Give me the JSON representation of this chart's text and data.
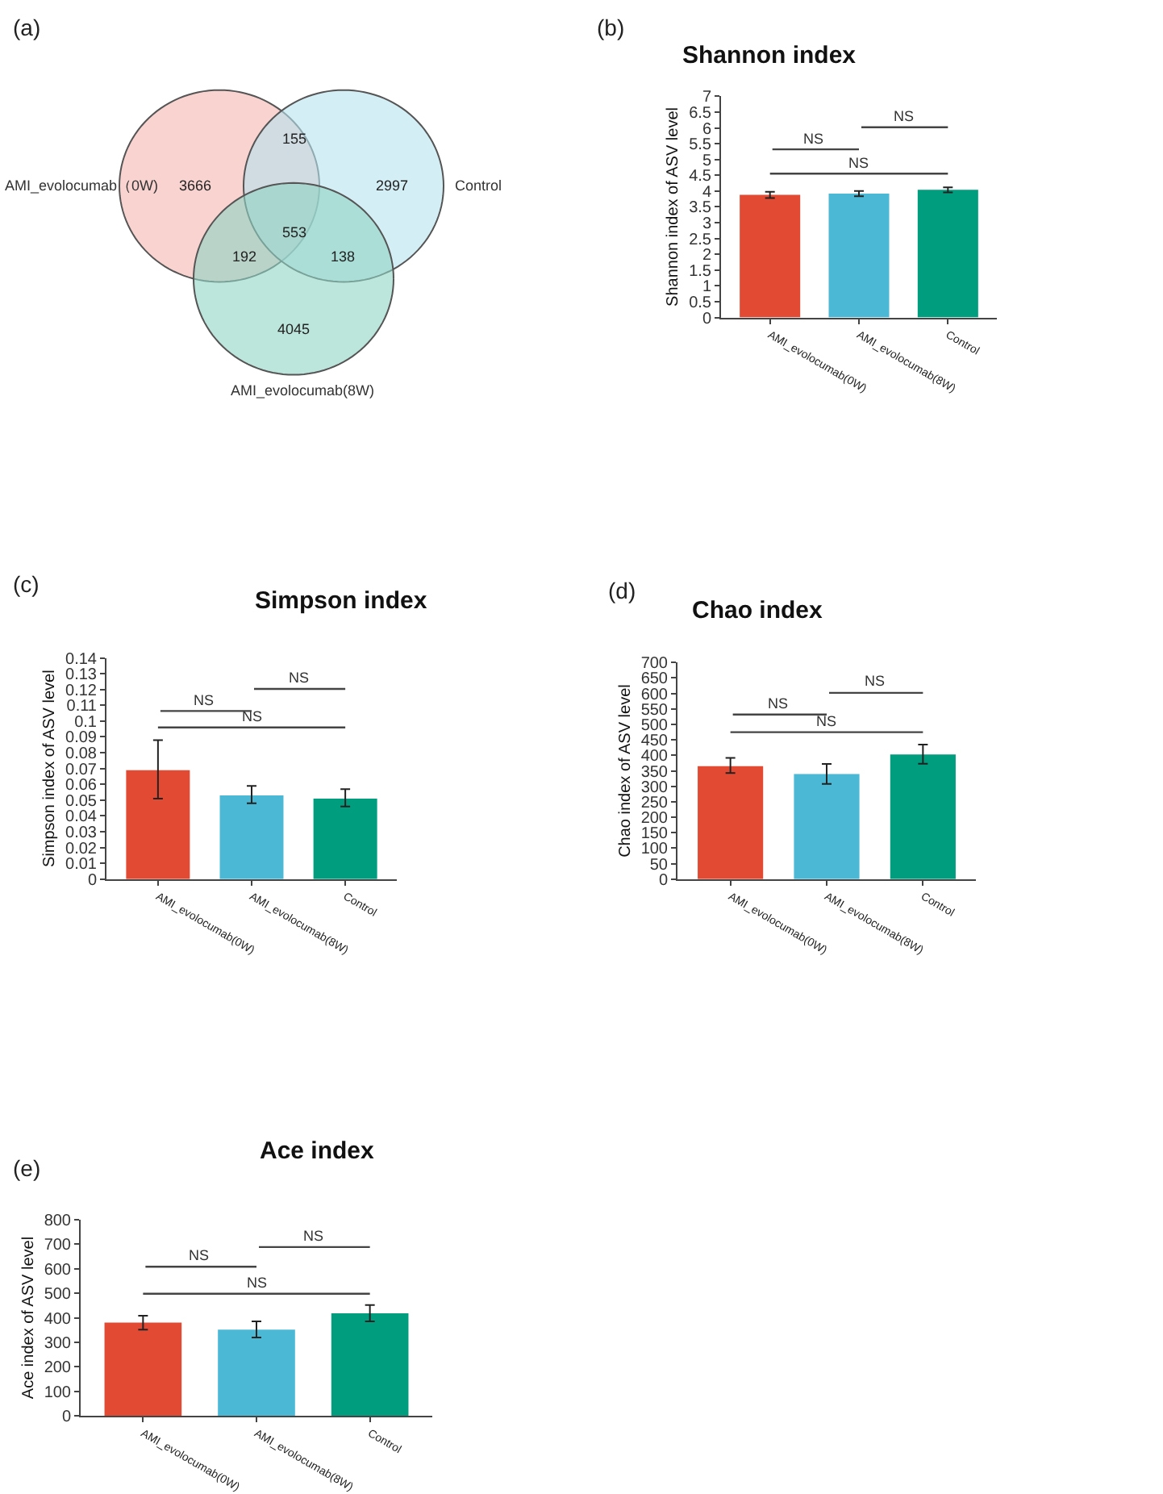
{
  "chart_data": [
    {
      "type": "other",
      "annotations": [
        "(a)",
        "AMI_evolocumab（0W)",
        "Control",
        "AMI_evolocumab(8W)",
        "3666",
        "2997",
        "4045",
        "155",
        "192",
        "138",
        "553"
      ]
    },
    {
      "type": "bar",
      "title": "Shannon index",
      "ylabel": "Shannon index of ASV level",
      "categories": [
        "AMI_evolocumab(0W)",
        "AMI_evolocumab(8W)",
        "Control"
      ],
      "values": [
        3.88,
        3.92,
        4.04
      ],
      "colors": [
        "#e34a33",
        "#4bb8d6",
        "#009e7f"
      ],
      "errors": [
        [
          3.78,
          3.98
        ],
        [
          3.84,
          4.0
        ],
        [
          3.96,
          4.12
        ]
      ],
      "ylim": [
        0,
        7
      ],
      "yticks": [
        0,
        0.5,
        1,
        1.5,
        2,
        2.5,
        3,
        3.5,
        4,
        4.5,
        5,
        5.5,
        6,
        6.5,
        7
      ],
      "ref_lines": [
        {
          "axis": "y",
          "value": 4.55,
          "label": "NS"
        }
      ],
      "annotations": [
        "(b)",
        "NS",
        "NS"
      ]
    },
    {
      "type": "bar",
      "title": "Simpson index",
      "ylabel": "Simpson index of ASV level",
      "categories": [
        "AMI_evolocumab(0W)",
        "AMI_evolocumab(8W)",
        "Control"
      ],
      "values": [
        0.069,
        0.053,
        0.051
      ],
      "colors": [
        "#e34a33",
        "#4bb8d6",
        "#009e7f"
      ],
      "errors": [
        [
          0.051,
          0.088
        ],
        [
          0.048,
          0.059
        ],
        [
          0.046,
          0.057
        ]
      ],
      "ylim": [
        0,
        0.14
      ],
      "yticks": [
        0,
        0.01,
        0.02,
        0.03,
        0.04,
        0.05,
        0.06,
        0.07,
        0.08,
        0.09,
        0.1,
        0.11,
        0.12,
        0.13,
        0.14
      ],
      "ref_lines": [
        {
          "axis": "y",
          "value": 0.096,
          "label": "NS"
        }
      ],
      "annotations": [
        "(c)",
        "NS",
        "NS"
      ]
    },
    {
      "type": "bar",
      "title": "Chao index",
      "ylabel": "Chao index of ASV level",
      "categories": [
        "AMI_evolocumab(0W)",
        "AMI_evolocumab(8W)",
        "Control"
      ],
      "values": [
        365,
        340,
        403
      ],
      "colors": [
        "#e34a33",
        "#4bb8d6",
        "#009e7f"
      ],
      "errors": [
        [
          343,
          392
        ],
        [
          308,
          372
        ],
        [
          373,
          435
        ]
      ],
      "ylim": [
        0,
        700
      ],
      "yticks": [
        0,
        50,
        100,
        150,
        200,
        250,
        300,
        350,
        400,
        450,
        500,
        550,
        600,
        650,
        700
      ],
      "ref_lines": [
        {
          "axis": "y",
          "value": 475,
          "label": "NS"
        }
      ],
      "annotations": [
        "(d)",
        "NS",
        "NS"
      ]
    },
    {
      "type": "bar",
      "title": "Ace index",
      "ylabel": "Ace index of ASV level",
      "categories": [
        "AMI_evolocumab(0W)",
        "AMI_evolocumab(8W)",
        "Control"
      ],
      "values": [
        380,
        352,
        418
      ],
      "colors": [
        "#e34a33",
        "#4bb8d6",
        "#009e7f"
      ],
      "errors": [
        [
          352,
          408
        ],
        [
          320,
          385
        ],
        [
          385,
          452
        ]
      ],
      "ylim": [
        0,
        800
      ],
      "yticks": [
        0,
        100,
        200,
        300,
        400,
        500,
        600,
        700,
        800
      ],
      "ref_lines": [
        {
          "axis": "y",
          "value": 498,
          "label": "NS"
        }
      ],
      "annotations": [
        "(e)",
        "NS",
        "NS"
      ]
    }
  ]
}
